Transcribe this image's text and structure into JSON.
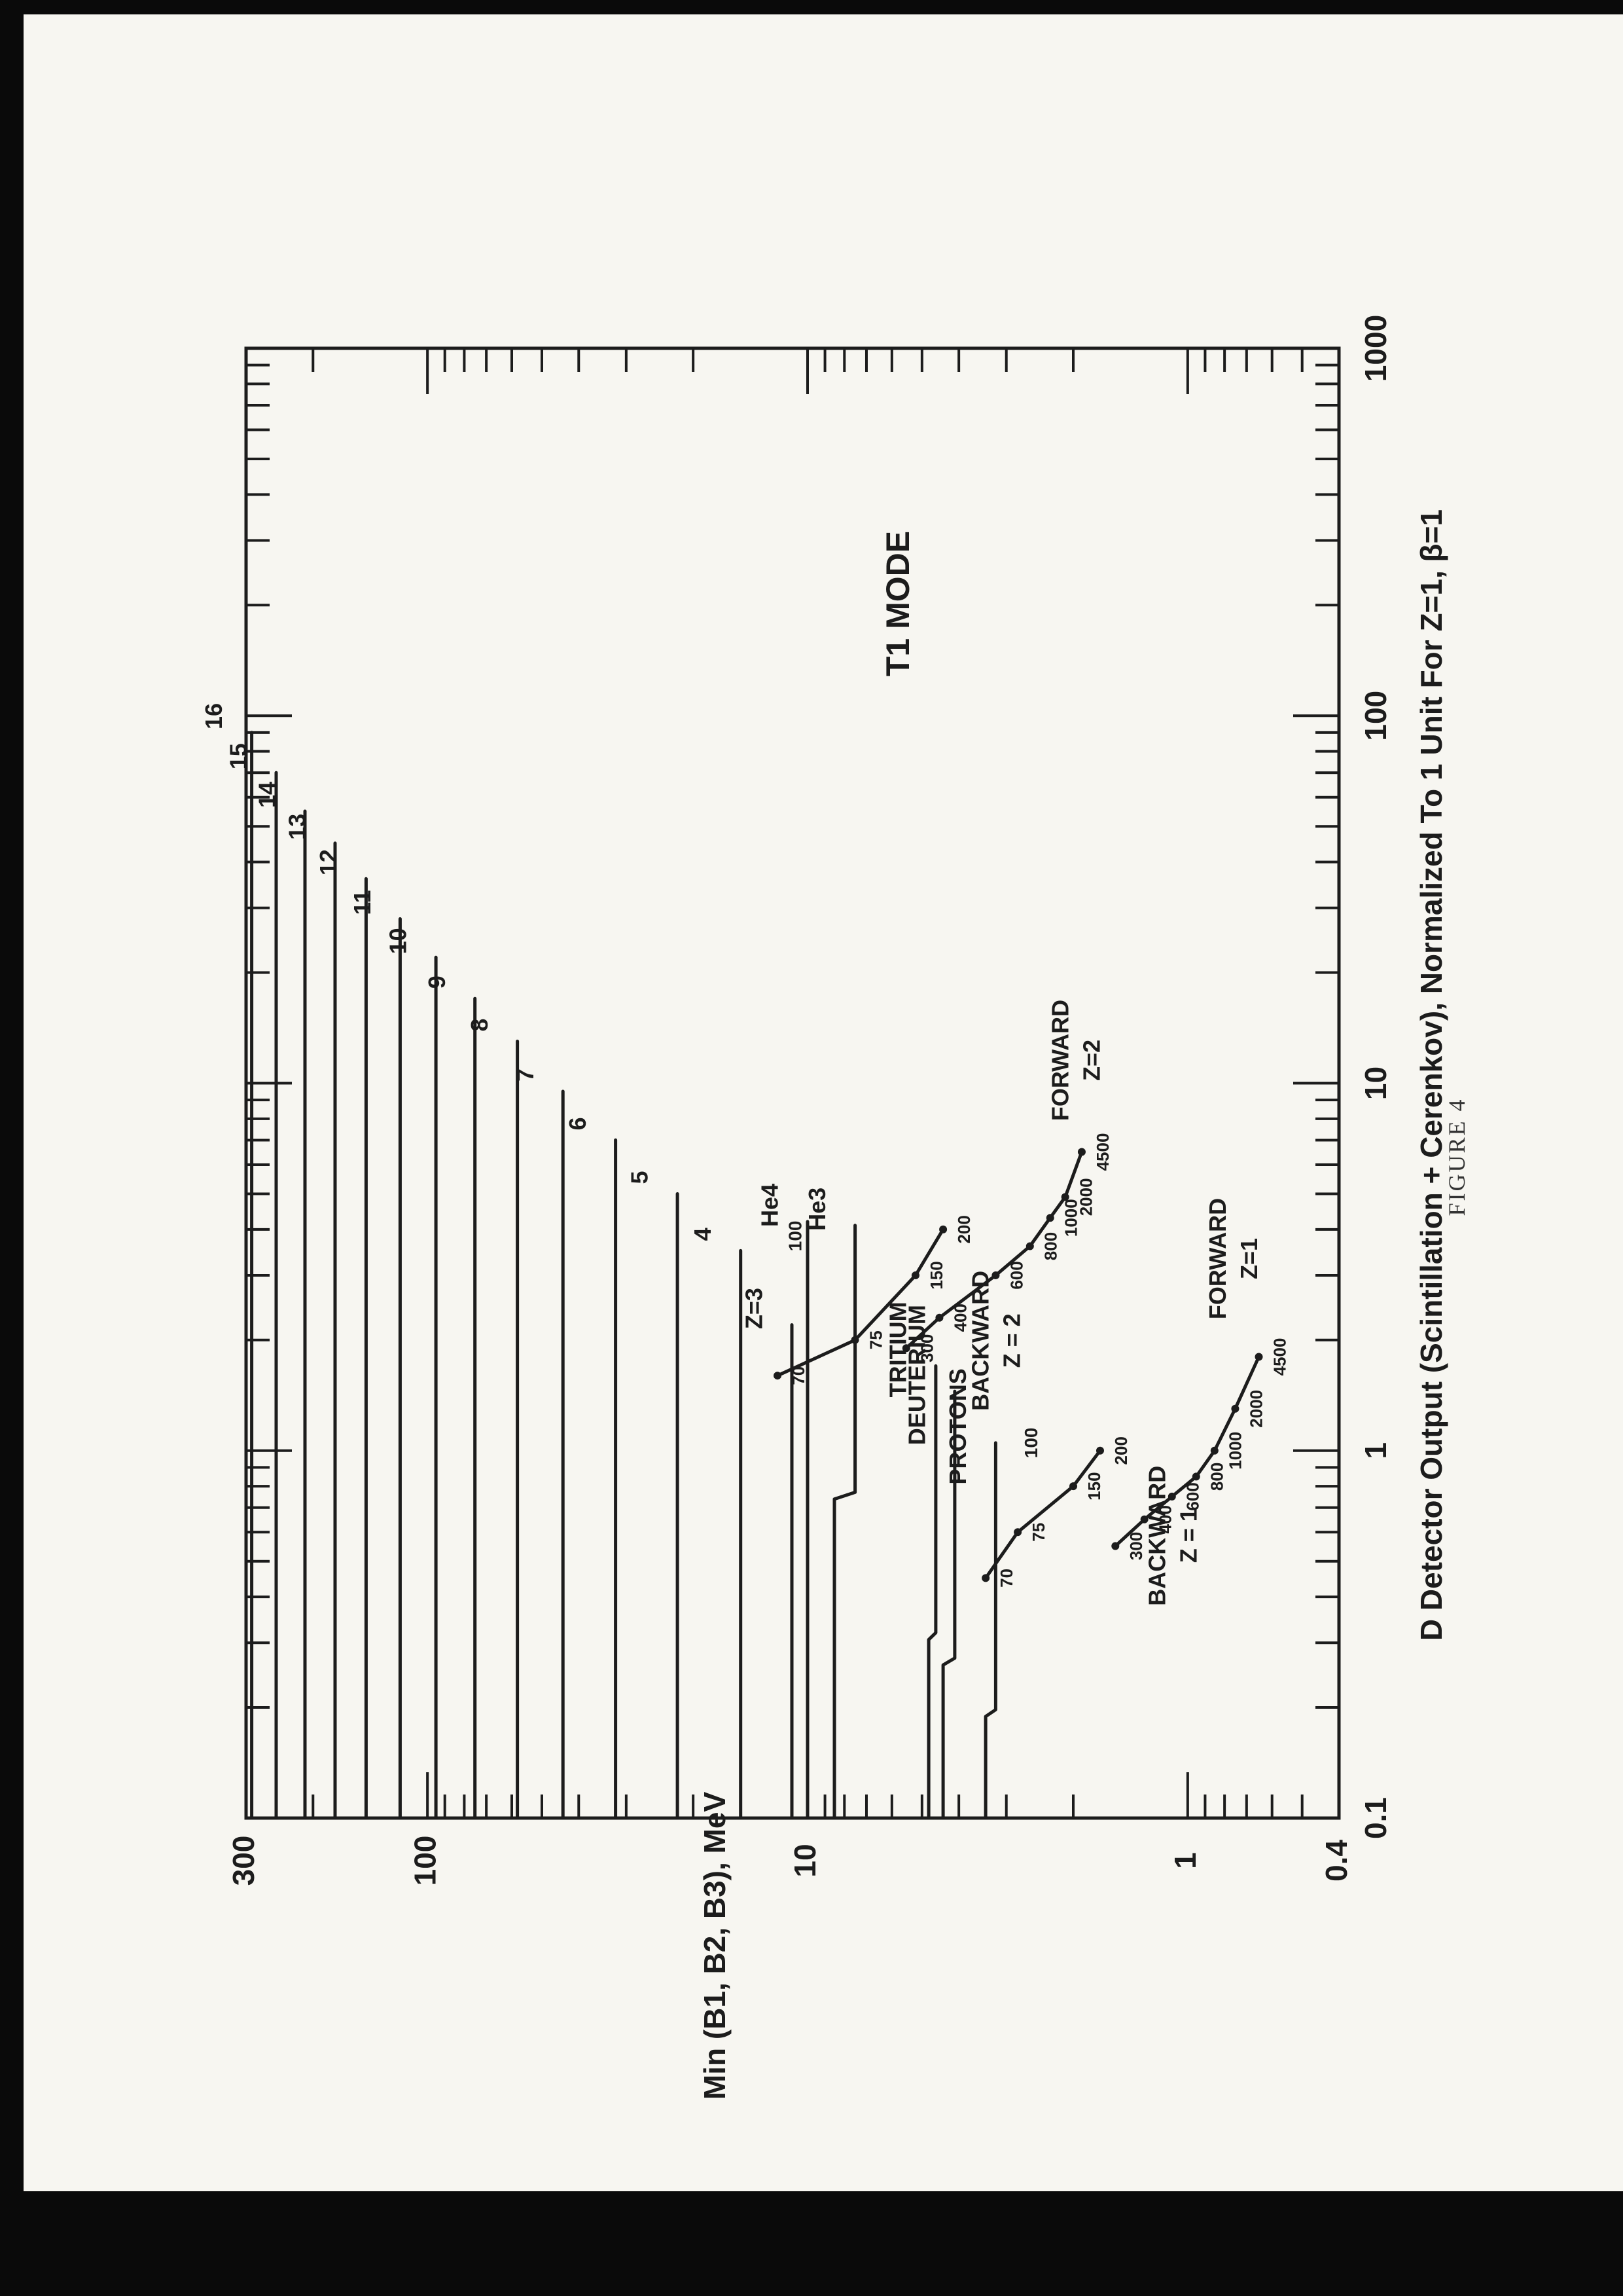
{
  "figure_caption": "FIGURE 4",
  "chart_data": {
    "type": "line",
    "title": "T1 MODE",
    "xlabel": "D Detector Output (Scintillation + Cerenkov), Normalized To 1 Unit For Z=1, β=1",
    "ylabel": "Min (B1, B2, B3), MeV",
    "x_scale": "log",
    "y_scale": "log",
    "xlim": [
      0.1,
      1000
    ],
    "ylim": [
      0.4,
      300
    ],
    "x_ticks": [
      "0.1",
      "1",
      "10",
      "100",
      "1000"
    ],
    "y_ticks": [
      "300",
      "100",
      "10",
      "1",
      "0.4"
    ],
    "grid": false,
    "charge_curves": [
      {
        "label": "16",
        "b_min": 290,
        "x_end": 90,
        "b_end": 290
      },
      {
        "label": "15",
        "b_min": 250,
        "x_end": 70,
        "b_end": 250
      },
      {
        "label": "14",
        "b_min": 210,
        "x_end": 55,
        "b_end": 210
      },
      {
        "label": "13",
        "b_min": 175,
        "x_end": 45,
        "b_end": 175
      },
      {
        "label": "12",
        "b_min": 145,
        "x_end": 36,
        "b_end": 145
      },
      {
        "label": "11",
        "b_min": 118,
        "x_end": 28,
        "b_end": 118
      },
      {
        "label": "10",
        "b_min": 95,
        "x_end": 22,
        "b_end": 95
      },
      {
        "label": "9",
        "b_min": 75,
        "x_end": 17,
        "b_end": 75
      },
      {
        "label": "8",
        "b_min": 58,
        "x_end": 13,
        "b_end": 58
      },
      {
        "label": "7",
        "b_min": 44,
        "x_end": 9.5,
        "b_end": 44
      },
      {
        "label": "6",
        "b_min": 32,
        "x_end": 7,
        "b_end": 32
      },
      {
        "label": "5",
        "b_min": 22,
        "x_end": 5,
        "b_end": 22
      },
      {
        "label": "4",
        "b_min": 15,
        "x_end": 3.5,
        "b_end": 15
      },
      {
        "label": "Z=3",
        "b_min": 11,
        "x_end": 2.2,
        "b_end": 11
      }
    ],
    "isotope_curves": [
      {
        "label": "He4",
        "b_min": 10,
        "x_end": 4.2,
        "b_end": 10
      },
      {
        "label": "He3",
        "b_min": 8.5,
        "x_end": 4.1,
        "b_end": 7.5
      },
      {
        "label": "TRITIUM",
        "b_min": 4.8,
        "x_end": 1.7,
        "b_end": 4.6
      },
      {
        "label": "DEUTERIUM",
        "b_min": 4.4,
        "x_end": 1.45,
        "b_end": 4.1
      },
      {
        "label": "PROTONS",
        "b_min": 3.4,
        "x_end": 1.05,
        "b_end": 3.2
      }
    ],
    "backward_z2": {
      "label": "BACKWARD",
      "sublabel": "Z = 2",
      "x": [
        1.6,
        2.0,
        3.0,
        4.0
      ],
      "y": [
        12,
        7.5,
        5.2,
        4.4
      ],
      "markers": [
        "70",
        "75",
        "150",
        "200"
      ]
    },
    "forward_z2": {
      "label": "FORWARD",
      "sublabel": "Z=2",
      "x": [
        1.9,
        2.3,
        3.0,
        3.6,
        4.3,
        4.9,
        6.5
      ],
      "y": [
        5.5,
        4.5,
        3.2,
        2.6,
        2.3,
        2.1,
        1.9
      ],
      "markers": [
        "300",
        "400",
        "600",
        "800",
        "1000",
        "2000",
        "4500"
      ]
    },
    "backward_z1": {
      "label": "BACKWARD",
      "sublabel": "Z = 1",
      "x": [
        0.45,
        0.6,
        0.8,
        1.0
      ],
      "y": [
        3.4,
        2.8,
        2.0,
        1.7
      ],
      "markers": [
        "70",
        "75",
        "150",
        "200"
      ]
    },
    "forward_z1": {
      "label": "FORWARD",
      "sublabel": "Z=1",
      "x": [
        0.55,
        0.65,
        0.75,
        0.85,
        1.0,
        1.3,
        1.8
      ],
      "y": [
        1.55,
        1.3,
        1.1,
        0.95,
        0.85,
        0.75,
        0.65
      ],
      "markers": [
        "300",
        "400",
        "600",
        "800",
        "1000",
        "2000",
        "4500"
      ]
    },
    "cutoff_labels": [
      "100",
      "100"
    ]
  }
}
